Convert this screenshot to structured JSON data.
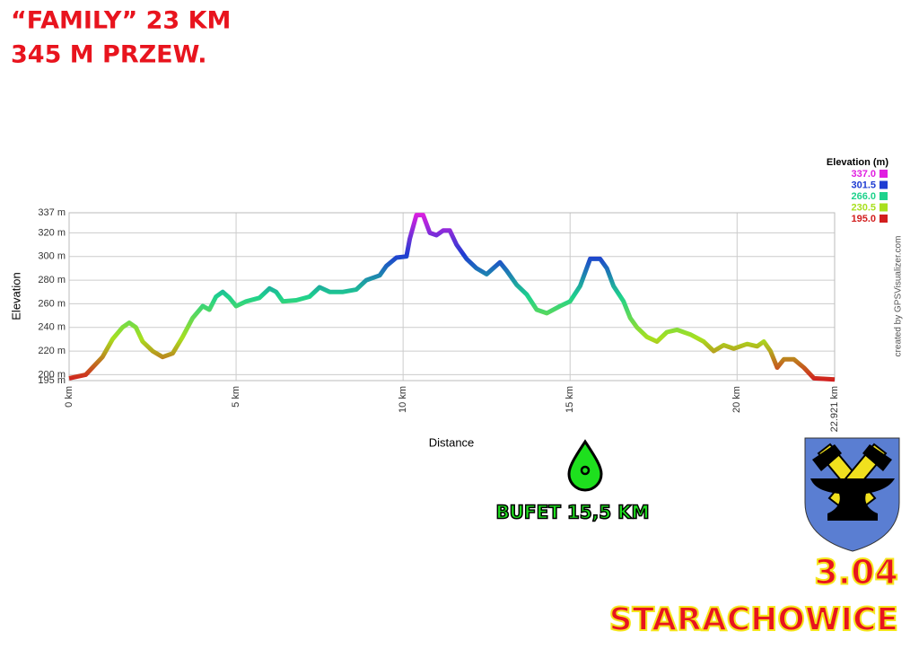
{
  "header": {
    "lines": [
      "“FAMILY” 23 KM",
      "345 M PRZEW."
    ]
  },
  "chart_data": {
    "type": "line",
    "x_label": "Distance",
    "y_label": "Elevation",
    "x": [
      0,
      0.5,
      1.0,
      1.3,
      1.6,
      1.8,
      2.0,
      2.2,
      2.5,
      2.8,
      3.1,
      3.4,
      3.7,
      4.0,
      4.2,
      4.4,
      4.6,
      4.8,
      5.0,
      5.3,
      5.7,
      6.0,
      6.2,
      6.4,
      6.8,
      7.2,
      7.5,
      7.8,
      8.2,
      8.6,
      8.9,
      9.3,
      9.5,
      9.8,
      10.1,
      10.2,
      10.4,
      10.6,
      10.8,
      11.0,
      11.2,
      11.4,
      11.6,
      11.9,
      12.2,
      12.5,
      12.7,
      12.9,
      13.1,
      13.4,
      13.7,
      14.0,
      14.3,
      14.7,
      15.0,
      15.3,
      15.6,
      15.9,
      16.1,
      16.3,
      16.6,
      16.8,
      17.0,
      17.3,
      17.6,
      17.9,
      18.2,
      18.6,
      19.0,
      19.3,
      19.6,
      19.9,
      20.3,
      20.6,
      20.8,
      21.0,
      21.2,
      21.4,
      21.7,
      22.0,
      22.3,
      22.921
    ],
    "values": [
      197,
      200,
      215,
      230,
      240,
      244,
      240,
      228,
      220,
      215,
      218,
      232,
      248,
      258,
      255,
      266,
      270,
      265,
      258,
      262,
      265,
      273,
      270,
      262,
      263,
      266,
      274,
      270,
      270,
      272,
      280,
      284,
      292,
      299,
      300,
      315,
      335,
      335,
      320,
      318,
      322,
      322,
      310,
      298,
      290,
      285,
      290,
      295,
      288,
      276,
      268,
      255,
      252,
      258,
      262,
      275,
      298,
      298,
      290,
      275,
      262,
      248,
      240,
      232,
      228,
      236,
      238,
      234,
      228,
      220,
      225,
      222,
      226,
      224,
      228,
      220,
      206,
      213,
      213,
      206,
      197,
      196
    ],
    "xlim": [
      0,
      22.921
    ],
    "xticks": [
      {
        "value": 0,
        "label": "0 km"
      },
      {
        "value": 5,
        "label": "5 km"
      },
      {
        "value": 10,
        "label": "10 km"
      },
      {
        "value": 15,
        "label": "15 km"
      },
      {
        "value": 20,
        "label": "20 km"
      },
      {
        "value": 22.921,
        "label": "22.921 km"
      }
    ],
    "ylim": [
      195,
      337
    ],
    "yticks": [
      {
        "value": 195,
        "label": "195 m"
      },
      {
        "value": 200,
        "label": "200 m"
      },
      {
        "value": 220,
        "label": "220 m"
      },
      {
        "value": 240,
        "label": "240 m"
      },
      {
        "value": 260,
        "label": "260 m"
      },
      {
        "value": 280,
        "label": "280 m"
      },
      {
        "value": 300,
        "label": "300 m"
      },
      {
        "value": 320,
        "label": "320 m"
      },
      {
        "value": 337,
        "label": "337 m"
      }
    ],
    "grid": true,
    "colorscale": {
      "title": "Elevation (m)",
      "values": [
        337,
        301.5,
        266,
        230.5,
        195
      ],
      "value_labels": [
        "337.0",
        "301.5",
        "266.0",
        "230.5",
        "195.0"
      ],
      "colors": [
        "#e01ee0",
        "#1e3cd2",
        "#1ed28c",
        "#a8e01e",
        "#d21e1e"
      ]
    },
    "credit": "created by GPSVisualizer.com"
  },
  "annotations": {
    "aid_station": "BUFET 15,5 KM",
    "date": "3.04",
    "town": "STARACHOWICE"
  }
}
